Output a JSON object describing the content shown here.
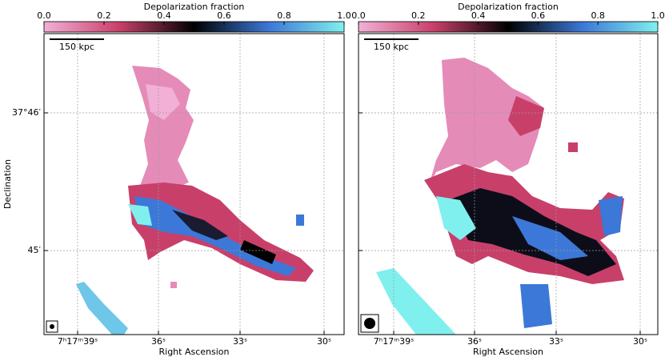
{
  "chart_data": [
    {
      "type": "image",
      "colorbar_label": "Depolarization fraction",
      "clim": [
        0,
        1
      ],
      "colorbar_ticks": [
        {
          "value": 0,
          "label": "0.0"
        },
        {
          "value": 0.2,
          "label": "0.2"
        },
        {
          "value": 0.4,
          "label": "0.4"
        },
        {
          "value": 0.6,
          "label": "0.6"
        },
        {
          "value": 0.8,
          "label": "0.8"
        },
        {
          "value": 1,
          "label": "1.0"
        }
      ],
      "colormap": [
        "#f2b0d6",
        "#c8406a",
        "#000000",
        "#3c78d8",
        "#80f0ee"
      ],
      "xlabel": "Right Ascension",
      "ylabel": "Declination",
      "xticks": [
        "7ʰ17ᵐ39ˢ",
        "36ˢ",
        "33ˢ",
        "30ˢ"
      ],
      "yticks": [
        "37°46′",
        "45′"
      ],
      "scalebar": "150 kpc"
    },
    {
      "type": "image",
      "colorbar_label": "Depolarization fraction",
      "clim": [
        0,
        1
      ],
      "colorbar_ticks": [
        {
          "value": 0,
          "label": "0.0"
        },
        {
          "value": 0.2,
          "label": "0.2"
        },
        {
          "value": 0.4,
          "label": "0.4"
        },
        {
          "value": 0.6,
          "label": "0.6"
        },
        {
          "value": 0.8,
          "label": "0.8"
        },
        {
          "value": 1,
          "label": "1.0"
        }
      ],
      "colormap": [
        "#f2b0d6",
        "#c8406a",
        "#000000",
        "#3c78d8",
        "#80f0ee"
      ],
      "xlabel": "Right Ascension",
      "xticks": [
        "7ʰ17ᵐ39ˢ",
        "36ˢ",
        "33ˢ",
        "30ˢ"
      ],
      "scalebar": "150 kpc"
    }
  ]
}
